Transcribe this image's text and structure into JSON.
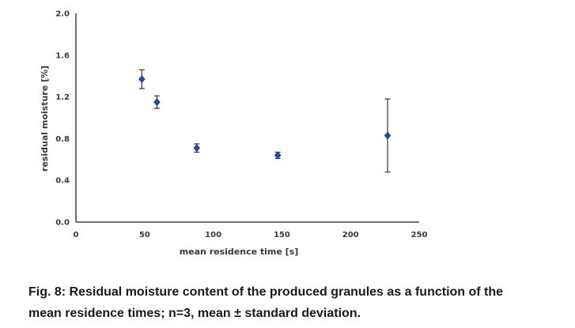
{
  "caption": {
    "line1": "Fig. 8: Residual moisture content of the produced granules as a function of the",
    "line2": "mean residence times; n=3, mean ± standard deviation."
  },
  "chart_data": {
    "type": "scatter",
    "xlabel": "mean residence time [s]",
    "ylabel": "residual moisture [%]",
    "xlim": [
      0,
      250
    ],
    "ylim": [
      0.0,
      2.0
    ],
    "x_ticks": [
      0,
      50,
      100,
      150,
      200,
      250
    ],
    "x_tick_labels": [
      "0",
      "50",
      "100",
      "150",
      "200",
      "250"
    ],
    "y_ticks": [
      0.0,
      0.4,
      0.8,
      1.2,
      1.6,
      2.0
    ],
    "y_tick_labels": [
      "0.0",
      "0.4",
      "0.8",
      "1.2",
      "1.6",
      "2.0"
    ],
    "grid": false,
    "marker": "diamond",
    "marker_color": "#1f4e9c",
    "errorbar_color": "#333333",
    "points": [
      {
        "x": 48,
        "y": 1.37,
        "err": 0.09
      },
      {
        "x": 59,
        "y": 1.15,
        "err": 0.06
      },
      {
        "x": 88,
        "y": 0.71,
        "err": 0.04
      },
      {
        "x": 147,
        "y": 0.64,
        "err": 0.03
      },
      {
        "x": 227,
        "y": 0.83,
        "err": 0.35
      }
    ]
  }
}
